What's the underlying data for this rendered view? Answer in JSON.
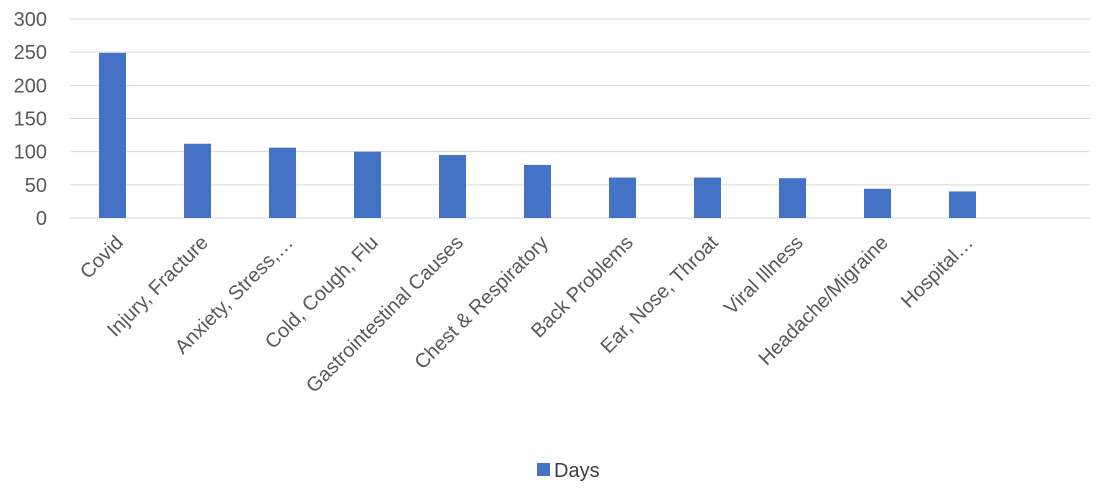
{
  "chart_data": {
    "type": "bar",
    "categories": [
      "Covid",
      "Injury, Fracture",
      "Anxiety, Stress,…",
      "Cold, Cough, Flu",
      "Gastrointestinal Causes",
      "Chest & Respiratory",
      "Back Problems",
      "Ear, Nose, Throat",
      "Viral Illness",
      "Headache/Migraine",
      "Hospital…"
    ],
    "series": [
      {
        "name": "Days",
        "values": [
          249,
          112,
          106,
          100,
          95,
          80,
          61,
          61,
          60,
          44,
          40
        ],
        "color": "#4472C4"
      }
    ],
    "title": "",
    "xlabel": "",
    "ylabel": "",
    "ylim": [
      0,
      300
    ],
    "yticks": [
      "0",
      "50",
      "100",
      "150",
      "200",
      "250",
      "300"
    ],
    "grid": true,
    "legend": "bottom"
  }
}
